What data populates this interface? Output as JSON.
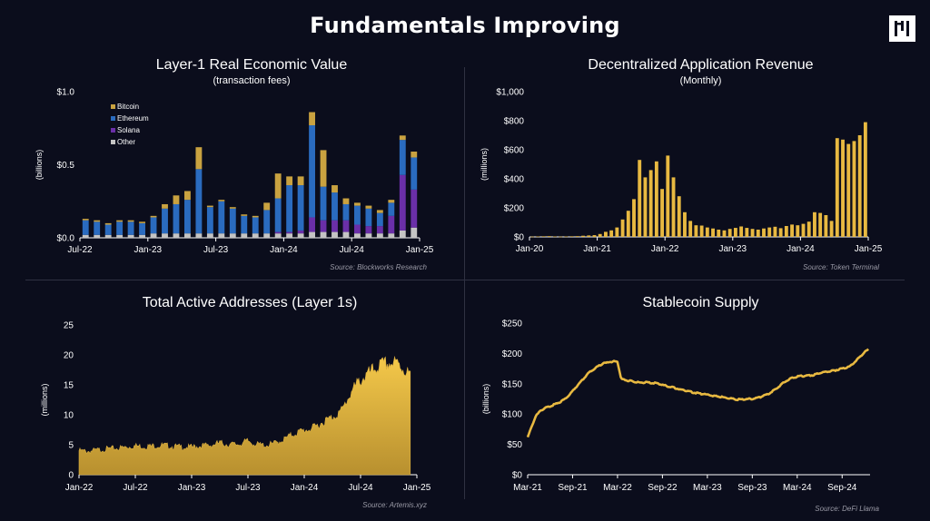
{
  "page": {
    "title": "Fundamentals Improving",
    "logo_icon": "pantera-logo-icon"
  },
  "colors": {
    "background": "#0b0d1c",
    "gold": "#e8b941",
    "bitcoin": "#c9a240",
    "ethereum": "#2a6bbf",
    "solana": "#6a2fa8",
    "other": "#c4c4c4",
    "text": "#ffffff",
    "source": "#9a9aa6"
  },
  "chart_data": [
    {
      "id": "l1-value",
      "type": "bar",
      "stacked": true,
      "title": "Layer-1 Real Economic Value",
      "subtitle": "(transaction fees)",
      "ylabel": "(billions)",
      "source": "Source: Blockworks Research",
      "ylim": [
        0,
        1.0
      ],
      "yticks": [
        "$0.0",
        "$0.5",
        "$1.0"
      ],
      "yticks_values": [
        0,
        0.5,
        1.0
      ],
      "xtick_labels": [
        "Jul-22",
        "Jan-23",
        "Jul-23",
        "Jan-24",
        "Jul-24",
        "Jan-25"
      ],
      "xtick_positions": [
        0,
        6,
        12,
        18,
        24,
        30
      ],
      "legend_position": "top-left",
      "categories": [
        "Jul-22",
        "Aug-22",
        "Sep-22",
        "Oct-22",
        "Nov-22",
        "Dec-22",
        "Jan-23",
        "Feb-23",
        "Mar-23",
        "Apr-23",
        "May-23",
        "Jun-23",
        "Jul-23",
        "Aug-23",
        "Sep-23",
        "Oct-23",
        "Nov-23",
        "Dec-23",
        "Jan-24",
        "Feb-24",
        "Mar-24",
        "Apr-24",
        "May-24",
        "Jun-24",
        "Jul-24",
        "Aug-24",
        "Sep-24",
        "Oct-24",
        "Nov-24",
        "Dec-24"
      ],
      "series": [
        {
          "name": "Other",
          "values": [
            0.02,
            0.02,
            0.02,
            0.02,
            0.02,
            0.02,
            0.03,
            0.03,
            0.03,
            0.03,
            0.03,
            0.03,
            0.03,
            0.03,
            0.03,
            0.03,
            0.03,
            0.03,
            0.03,
            0.03,
            0.04,
            0.04,
            0.04,
            0.04,
            0.03,
            0.03,
            0.03,
            0.03,
            0.05,
            0.07
          ]
        },
        {
          "name": "Solana",
          "values": [
            0,
            0,
            0,
            0,
            0,
            0,
            0,
            0,
            0,
            0,
            0,
            0,
            0,
            0,
            0,
            0,
            0,
            0.01,
            0.01,
            0.02,
            0.1,
            0.08,
            0.08,
            0.08,
            0.06,
            0.05,
            0.05,
            0.12,
            0.38,
            0.26
          ]
        },
        {
          "name": "Ethereum",
          "values": [
            0.1,
            0.09,
            0.07,
            0.09,
            0.09,
            0.08,
            0.11,
            0.17,
            0.2,
            0.23,
            0.44,
            0.18,
            0.22,
            0.17,
            0.12,
            0.11,
            0.16,
            0.23,
            0.32,
            0.31,
            0.63,
            0.23,
            0.19,
            0.11,
            0.13,
            0.12,
            0.09,
            0.09,
            0.24,
            0.22
          ]
        },
        {
          "name": "Bitcoin",
          "values": [
            0.01,
            0.01,
            0.01,
            0.01,
            0.01,
            0.01,
            0.01,
            0.03,
            0.06,
            0.06,
            0.15,
            0.01,
            0.01,
            0.01,
            0.01,
            0.01,
            0.05,
            0.17,
            0.06,
            0.06,
            0.09,
            0.25,
            0.05,
            0.04,
            0.02,
            0.02,
            0.02,
            0.02,
            0.03,
            0.04
          ]
        }
      ],
      "legend": [
        "Bitcoin",
        "Ethereum",
        "Solana",
        "Other"
      ]
    },
    {
      "id": "dapp-revenue",
      "type": "bar",
      "title": "Decentralized Application Revenue",
      "subtitle": "(Monthly)",
      "ylabel": "(millions)",
      "source": "Source: Token Terminal",
      "ylim": [
        0,
        1000
      ],
      "yticks": [
        "$0",
        "$200",
        "$400",
        "$600",
        "$800",
        "$1,000"
      ],
      "yticks_values": [
        0,
        200,
        400,
        600,
        800,
        1000
      ],
      "xtick_labels": [
        "Jan-20",
        "Jan-21",
        "Jan-22",
        "Jan-23",
        "Jan-24",
        "Jan-25"
      ],
      "xtick_positions": [
        0,
        12,
        24,
        36,
        48,
        60
      ],
      "x_start": "Jan-20",
      "values": [
        2,
        3,
        4,
        5,
        3,
        2,
        3,
        4,
        5,
        8,
        10,
        12,
        20,
        35,
        45,
        65,
        120,
        180,
        260,
        530,
        410,
        460,
        520,
        330,
        560,
        410,
        280,
        170,
        110,
        80,
        78,
        65,
        58,
        50,
        45,
        55,
        62,
        72,
        62,
        55,
        50,
        58,
        65,
        70,
        60,
        75,
        85,
        80,
        90,
        105,
        170,
        165,
        150,
        110,
        680,
        670,
        640,
        660,
        700,
        790
      ]
    },
    {
      "id": "active-addresses",
      "type": "area",
      "title": "Total Active Addresses (Layer 1s)",
      "ylabel": "(millions)",
      "source": "Source: Artemis.xyz",
      "ylim": [
        0,
        25
      ],
      "yticks": [
        "0",
        "5",
        "10",
        "15",
        "20",
        "25"
      ],
      "yticks_values": [
        0,
        5,
        10,
        15,
        20,
        25
      ],
      "xtick_labels": [
        "Jan-22",
        "Jul-22",
        "Jan-23",
        "Jul-23",
        "Jan-24",
        "Jul-24",
        "Jan-25"
      ],
      "xtick_positions": [
        0,
        6,
        12,
        18,
        24,
        30,
        36
      ],
      "x_start": "Jan-22",
      "x_months": [
        0,
        1,
        2,
        3,
        4,
        5,
        6,
        7,
        8,
        9,
        10,
        11,
        12,
        13,
        14,
        15,
        16,
        17,
        18,
        19,
        20,
        21,
        22,
        23,
        24,
        25,
        26,
        27,
        28,
        29,
        30,
        31,
        32,
        33,
        34,
        35,
        35.3
      ],
      "y": [
        4.0,
        3.9,
        4.1,
        4.3,
        4.4,
        4.6,
        4.8,
        4.7,
        4.8,
        4.9,
        4.7,
        4.6,
        4.6,
        4.8,
        4.9,
        5.3,
        5.0,
        5.1,
        5.6,
        5.0,
        4.9,
        5.3,
        6.0,
        6.9,
        7.4,
        7.8,
        8.8,
        9.6,
        10.7,
        13.8,
        15.8,
        17.0,
        18.2,
        18.6,
        18.5,
        17.0,
        16.8
      ]
    },
    {
      "id": "stablecoin-supply",
      "type": "line",
      "title": "Stablecoin Supply",
      "ylabel": "(billions)",
      "source": "Source: DeFi Llama",
      "ylim": [
        0,
        250
      ],
      "yticks": [
        "$0",
        "$50",
        "$100",
        "$150",
        "$200",
        "$250"
      ],
      "yticks_values": [
        0,
        50,
        100,
        150,
        200,
        250
      ],
      "xtick_labels": [
        "Mar-21",
        "Sep-21",
        "Mar-22",
        "Sep-22",
        "Mar-23",
        "Sep-23",
        "Mar-24",
        "Sep-24"
      ],
      "xtick_positions": [
        0,
        6,
        12,
        18,
        24,
        30,
        36,
        42
      ],
      "x_start": "Mar-21",
      "x_months": [
        0,
        0.5,
        1,
        1.5,
        2,
        3,
        4,
        5,
        6,
        7,
        8,
        9,
        10,
        11,
        12,
        12.5,
        13,
        14,
        15,
        16,
        17,
        18,
        20,
        22,
        24,
        26,
        28,
        30,
        31,
        32,
        33,
        34,
        35,
        36,
        37,
        38,
        39,
        40,
        41,
        42,
        43,
        44,
        45,
        45.5
      ],
      "y": [
        62,
        78,
        95,
        103,
        108,
        113,
        118,
        125,
        138,
        152,
        166,
        176,
        183,
        186,
        187,
        157,
        156,
        154,
        152,
        152,
        151,
        148,
        142,
        136,
        132,
        128,
        124,
        125,
        128,
        132,
        140,
        150,
        158,
        162,
        163,
        164,
        168,
        170,
        172,
        175,
        178,
        190,
        202,
        206
      ]
    }
  ]
}
